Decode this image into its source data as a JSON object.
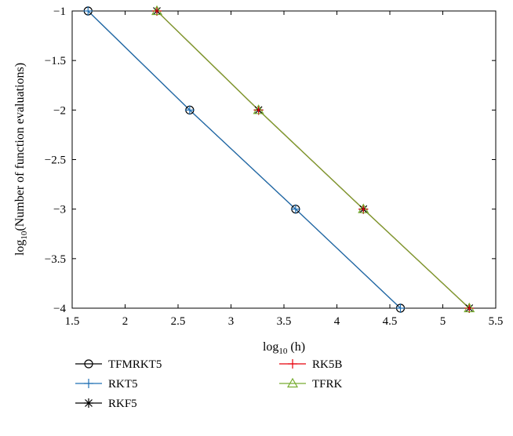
{
  "chart_data": {
    "type": "line",
    "title": "",
    "xlabel": {
      "prefix": "log",
      "sub": "10",
      "rest": " (h)"
    },
    "ylabel": {
      "prefix": "log",
      "sub": "10",
      "rest": "(Number of function evaluations)"
    },
    "xlim": [
      1.5,
      5.5
    ],
    "ylim": [
      -4,
      -1
    ],
    "xticks": [
      1.5,
      2,
      2.5,
      3,
      3.5,
      4,
      4.5,
      5,
      5.5
    ],
    "xtick_labels": [
      "1.5",
      "2",
      "2.5",
      "3",
      "3.5",
      "4",
      "4.5",
      "5",
      "5.5"
    ],
    "yticks": [
      -4,
      -3.5,
      -3,
      -2.5,
      -2,
      -1.5,
      -1
    ],
    "ytick_labels": [
      "−4",
      "−3.5",
      "−3",
      "−2.5",
      "−2",
      "−1.5",
      "−1"
    ],
    "grid": false,
    "legend_position": "below the plot, two columns",
    "series": [
      {
        "name": "TFMRKT5",
        "color": "#000000",
        "marker": "circle",
        "x": [
          1.65,
          2.61,
          3.61,
          4.6
        ],
        "y": [
          -1,
          -2,
          -3,
          -4
        ]
      },
      {
        "name": "RKT5",
        "color": "#1f6fb4",
        "marker": "plus",
        "x": [
          1.65,
          2.61,
          3.61,
          4.6
        ],
        "y": [
          -1,
          -2,
          -3,
          -4
        ]
      },
      {
        "name": "RKF5",
        "color": "#000000",
        "marker": "asterisk",
        "x": [
          2.3,
          3.26,
          4.25,
          5.25
        ],
        "y": [
          -1,
          -2,
          -3,
          -4
        ]
      },
      {
        "name": "RK5B",
        "color": "#e8000b",
        "marker": "plus",
        "x": [
          2.3,
          3.26,
          4.25,
          5.25
        ],
        "y": [
          -1,
          -2,
          -3,
          -4
        ]
      },
      {
        "name": "TFRK",
        "color": "#77ac30",
        "marker": "triangle",
        "x": [
          2.3,
          3.26,
          4.25,
          5.25
        ],
        "y": [
          -1,
          -2,
          -3,
          -4
        ]
      }
    ]
  }
}
